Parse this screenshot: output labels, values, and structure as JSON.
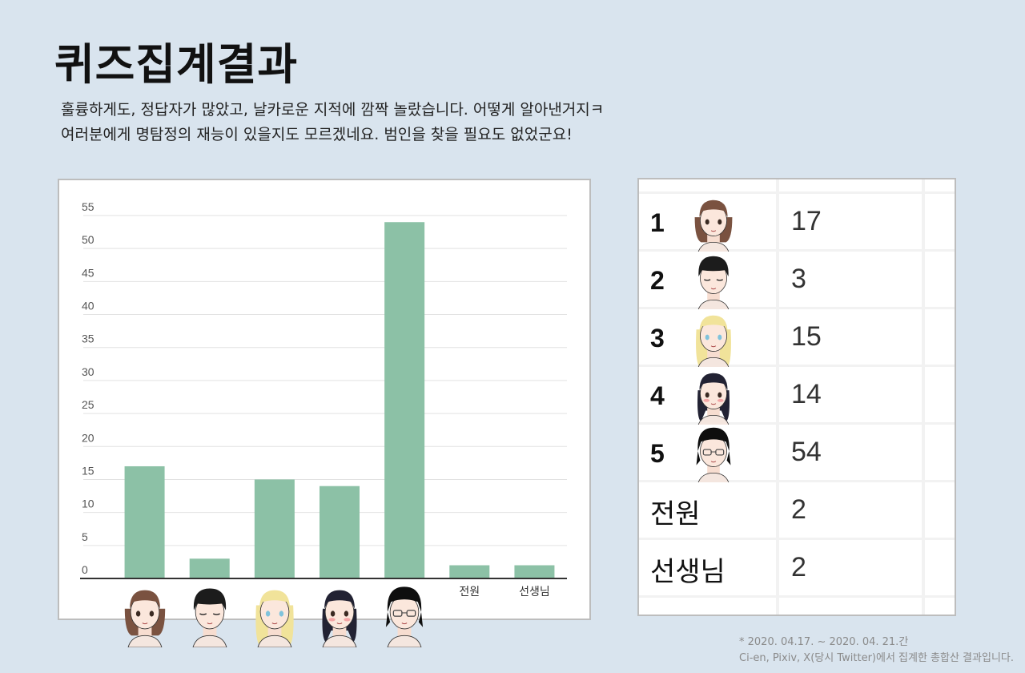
{
  "title": "퀴즈집계결과",
  "intro": {
    "line1": "훌륭하게도, 정답자가 많았고, 날카로운 지적에 깜짝 놀랐습니다. 어떻게 알아낸거지ㅋ",
    "line2": "여러분에게 명탐정의 재능이 있을지도 모르겠네요. 범인을 찾을 필요도 없었군요!"
  },
  "chart_data": {
    "type": "bar",
    "categories": [
      "1",
      "2",
      "3",
      "4",
      "5",
      "전원",
      "선생님"
    ],
    "category_labels": [
      "",
      "",
      "",
      "",
      "",
      "전원",
      "선생님"
    ],
    "values": [
      17,
      3,
      15,
      14,
      54,
      2,
      2
    ],
    "ylim": [
      0,
      55
    ],
    "yticks": [
      0,
      5,
      10,
      15,
      20,
      25,
      30,
      35,
      40,
      45,
      50,
      55
    ],
    "grid": true,
    "bar_color": "#8cc1a6",
    "face_icons": [
      "brown-bob-girl-icon",
      "black-short-hair-boy-icon",
      "blonde-girl-icon",
      "dark-hair-crying-girl-icon",
      "glasses-girl-icon"
    ]
  },
  "table": {
    "rows": [
      {
        "label": "1",
        "count": "17",
        "icon": "brown-bob-girl-icon"
      },
      {
        "label": "2",
        "count": "3",
        "icon": "black-short-hair-boy-icon"
      },
      {
        "label": "3",
        "count": "15",
        "icon": "blonde-girl-icon"
      },
      {
        "label": "4",
        "count": "14",
        "icon": "dark-hair-crying-girl-icon"
      },
      {
        "label": "5",
        "count": "54",
        "icon": "glasses-girl-icon"
      },
      {
        "label": "전원",
        "count": "2"
      },
      {
        "label": "선생님",
        "count": "2"
      }
    ]
  },
  "footnote": {
    "line1": "*    2020. 04.17. ~ 2020. 04. 21.간",
    "line2": "Ci-en, Pixiv, X(당시 Twitter)에서 집계한 총합산 결과입니다."
  },
  "colors": {
    "background": "#d9e4ee",
    "bar": "#8cc1a6",
    "grid": "#e2e2e2"
  }
}
